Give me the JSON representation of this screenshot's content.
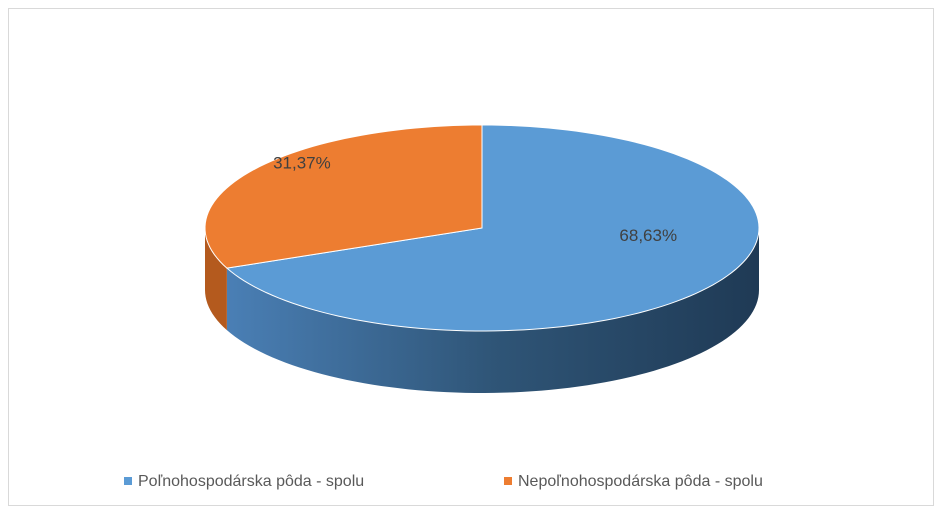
{
  "chart_data": {
    "type": "pie",
    "categories": [
      "Poľnohospodárska pôda  - spolu",
      "Nepoľnohospodárska pôda - spolu"
    ],
    "series": [
      {
        "values": [
          68.63,
          31.37
        ],
        "value_labels": [
          "68,63%",
          "31,37%"
        ],
        "colors": [
          "#5b9bd5",
          "#ed7d31"
        ]
      }
    ],
    "legend": "bottom"
  }
}
